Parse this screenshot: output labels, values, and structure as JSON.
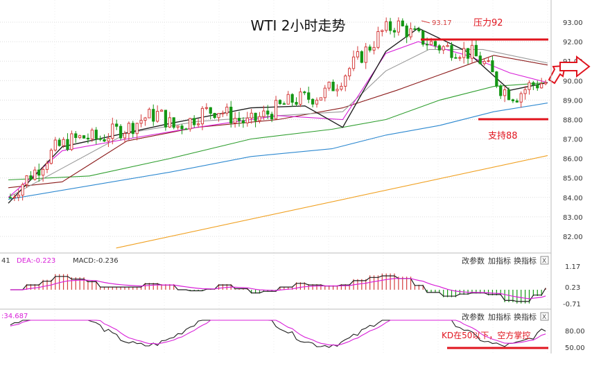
{
  "title": "WTI 2小时走势",
  "annotations": {
    "high_label": "93.17",
    "resistance_label": "压力92",
    "support_label": "支持88",
    "kd_note": "KD在50以下，空方掌控"
  },
  "colors": {
    "up": "#d43c3c",
    "down": "#149614",
    "grid": "#dcdcdc",
    "resistance_line": "#e0141e",
    "support_line": "#e0141e",
    "annotation_text": "#e0141e",
    "ma_black": "#1e1e1e",
    "ma_magenta": "#d81fd8",
    "ma_gray": "#999999",
    "ma_darkred": "#8b1a1a",
    "ma_green": "#2e9e2e",
    "ma_blue": "#2c88d0",
    "ma_orange": "#f0a020"
  },
  "chart_data": {
    "type": "candlestick",
    "yaxis": {
      "min": 81.5,
      "max": 93.5,
      "ticks": [
        "93.00",
        "92.00",
        "91.00",
        "90.00",
        "89.00",
        "88.00",
        "87.00",
        "86.00",
        "85.00",
        "84.00",
        "83.00",
        "82.00"
      ]
    },
    "levels": {
      "resistance": 92.0,
      "support": 88.0,
      "high": 93.17
    },
    "moving_averages": [
      {
        "color_key": "ma_orange",
        "points": [
          [
            0.2,
            81.4
          ],
          [
            1.0,
            86.15
          ]
        ]
      },
      {
        "color_key": "ma_blue",
        "points": [
          [
            0.0,
            83.9
          ],
          [
            0.15,
            84.6
          ],
          [
            0.3,
            85.3
          ],
          [
            0.45,
            86.1
          ],
          [
            0.6,
            86.5
          ],
          [
            0.7,
            87.2
          ],
          [
            0.8,
            87.7
          ],
          [
            0.9,
            88.4
          ],
          [
            1.0,
            88.85
          ]
        ]
      },
      {
        "color_key": "ma_green",
        "points": [
          [
            0.0,
            84.9
          ],
          [
            0.15,
            85.1
          ],
          [
            0.3,
            86.0
          ],
          [
            0.45,
            87.0
          ],
          [
            0.6,
            87.5
          ],
          [
            0.7,
            88.0
          ],
          [
            0.8,
            89.0
          ],
          [
            0.9,
            89.7
          ],
          [
            1.0,
            89.9
          ]
        ]
      },
      {
        "color_key": "ma_darkred",
        "points": [
          [
            0.0,
            84.5
          ],
          [
            0.1,
            84.8
          ],
          [
            0.22,
            86.9
          ],
          [
            0.35,
            87.6
          ],
          [
            0.5,
            88.0
          ],
          [
            0.62,
            88.6
          ],
          [
            0.72,
            89.5
          ],
          [
            0.82,
            90.5
          ],
          [
            0.9,
            91.3
          ],
          [
            1.0,
            90.8
          ]
        ]
      },
      {
        "color_key": "ma_gray",
        "points": [
          [
            0.0,
            84.0
          ],
          [
            0.1,
            85.5
          ],
          [
            0.22,
            87.3
          ],
          [
            0.35,
            87.9
          ],
          [
            0.5,
            88.2
          ],
          [
            0.62,
            88.4
          ],
          [
            0.7,
            90.5
          ],
          [
            0.78,
            91.6
          ],
          [
            0.88,
            91.6
          ],
          [
            1.0,
            90.9
          ]
        ]
      },
      {
        "color_key": "ma_magenta",
        "points": [
          [
            0.0,
            84.0
          ],
          [
            0.1,
            86.4
          ],
          [
            0.22,
            87.0
          ],
          [
            0.35,
            87.6
          ],
          [
            0.5,
            88.2
          ],
          [
            0.62,
            88.0
          ],
          [
            0.7,
            91.4
          ],
          [
            0.76,
            92.0
          ],
          [
            0.85,
            91.3
          ],
          [
            0.93,
            90.4
          ],
          [
            1.0,
            89.9
          ]
        ]
      },
      {
        "color_key": "ma_black",
        "points": [
          [
            0.0,
            83.7
          ],
          [
            0.1,
            86.6
          ],
          [
            0.2,
            87.2
          ],
          [
            0.3,
            87.8
          ],
          [
            0.45,
            88.6
          ],
          [
            0.55,
            88.7
          ],
          [
            0.62,
            87.6
          ],
          [
            0.7,
            91.5
          ],
          [
            0.76,
            92.7
          ],
          [
            0.85,
            91.5
          ],
          [
            0.93,
            89.5
          ],
          [
            1.0,
            89.9
          ]
        ]
      }
    ],
    "candles_seed": [
      84.0,
      84.9,
      85.6,
      86.5,
      86.9,
      87.1,
      87.0,
      87.4,
      87.6,
      88.1,
      88.3,
      87.6,
      87.9,
      88.4,
      88.5,
      88.1,
      87.8,
      88.2,
      88.6,
      89.0,
      89.1,
      89.3,
      89.9,
      90.8,
      91.6,
      92.5,
      92.9,
      92.4,
      92.0,
      91.7,
      91.6,
      91.4,
      90.8,
      89.6,
      89.2,
      89.8,
      89.9
    ]
  },
  "macd": {
    "legend_prefix": "41",
    "dea_label": "DEA:-0.223",
    "macd_label": "MACD:-0.236",
    "ticks": [
      "1.17",
      "0.23",
      "-0.71"
    ]
  },
  "kd": {
    "legend_value": ":34.687",
    "ticks": [
      "80.00",
      "50.00"
    ]
  },
  "toolbar": {
    "params_label": "改参数",
    "add_indicator_label": "加指标",
    "switch_indicator_label": "换指标",
    "close_label": "X"
  }
}
